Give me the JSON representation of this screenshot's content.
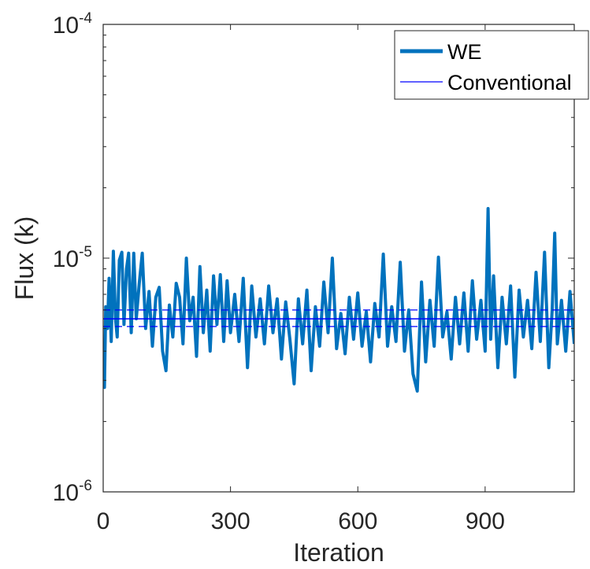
{
  "chart_data": {
    "type": "line",
    "title": "",
    "xlabel": "Iteration",
    "ylabel": "Flux (k)",
    "xlim": [
      0,
      1110
    ],
    "ylim": [
      1e-06,
      0.0001
    ],
    "yscale": "log",
    "xticks": [
      0,
      300,
      600,
      900
    ],
    "xtick_labels": [
      "0",
      "300",
      "600",
      "900"
    ],
    "yticks": [
      1e-06,
      1e-05,
      0.0001
    ],
    "ytick_labels": [
      {
        "base": "10",
        "exp": "-6"
      },
      {
        "base": "10",
        "exp": "-5"
      },
      {
        "base": "10",
        "exp": "-4"
      }
    ],
    "grid": false,
    "legend_position": "top-right",
    "series": [
      {
        "name": "WE",
        "color": "#0072BD",
        "style": "thick-solid",
        "x": [
          0,
          3,
          6,
          10,
          14,
          19,
          24,
          29,
          33,
          38,
          44,
          49,
          55,
          60,
          66,
          72,
          78,
          85,
          92,
          100,
          108,
          116,
          124,
          132,
          140,
          148,
          156,
          164,
          172,
          180,
          188,
          196,
          204,
          212,
          220,
          228,
          236,
          244,
          252,
          260,
          268,
          276,
          284,
          292,
          300,
          310,
          320,
          330,
          340,
          350,
          360,
          370,
          380,
          390,
          400,
          410,
          420,
          430,
          440,
          450,
          460,
          470,
          480,
          490,
          500,
          510,
          520,
          530,
          540,
          550,
          560,
          570,
          580,
          590,
          600,
          610,
          620,
          630,
          640,
          650,
          660,
          670,
          680,
          690,
          700,
          710,
          720,
          730,
          740,
          750,
          760,
          770,
          780,
          790,
          800,
          810,
          820,
          830,
          840,
          850,
          860,
          870,
          880,
          890,
          900,
          907,
          913,
          920,
          930,
          940,
          950,
          960,
          970,
          980,
          990,
          1000,
          1010,
          1020,
          1030,
          1040,
          1050,
          1058,
          1064,
          1070,
          1080,
          1090,
          1100,
          1110
        ],
        "values": [
          4.2e-06,
          2.8e-06,
          6.2e-06,
          5e-06,
          8.2e-06,
          4.4e-06,
          1.07e-05,
          5.5e-06,
          4.6e-06,
          9.8e-06,
          1.06e-05,
          5.2e-06,
          9e-06,
          1.05e-05,
          4.8e-06,
          1.05e-05,
          5.5e-06,
          7.8e-06,
          1.05e-05,
          5e-06,
          7.2e-06,
          4.2e-06,
          6.8e-06,
          7.5e-06,
          4e-06,
          3.3e-06,
          6.3e-06,
          4.6e-06,
          7.8e-06,
          6.8e-06,
          4.3e-06,
          1e-05,
          5.4e-06,
          6.8e-06,
          3.8e-06,
          9.2e-06,
          4.8e-06,
          7.3e-06,
          4e-06,
          8.4e-06,
          5.2e-06,
          8.5e-06,
          4.4e-06,
          8e-06,
          4.8e-06,
          7e-06,
          4.4e-06,
          8.2e-06,
          3.4e-06,
          7.6e-06,
          4.6e-06,
          6.7e-06,
          4.3e-06,
          7.6e-06,
          4.8e-06,
          6.7e-06,
          3.7e-06,
          6.5e-06,
          4.5e-06,
          2.9e-06,
          6.7e-06,
          4.3e-06,
          7.3e-06,
          3.3e-06,
          6.2e-06,
          4.2e-06,
          7.9e-06,
          4.8e-06,
          1e-05,
          4.1e-06,
          5.8e-06,
          3.9e-06,
          6.8e-06,
          4.5e-06,
          7.1e-06,
          4.2e-06,
          5.9e-06,
          3.6e-06,
          6.4e-06,
          4.6e-06,
          1.04e-05,
          4.2e-06,
          6.2e-06,
          4.4e-06,
          9.6e-06,
          4e-06,
          6e-06,
          3.2e-06,
          2.7e-06,
          7.9e-06,
          3.6e-06,
          6.6e-06,
          4.2e-06,
          1.01e-05,
          4.6e-06,
          5.9e-06,
          3.7e-06,
          6.8e-06,
          4.3e-06,
          7.1e-06,
          4e-06,
          8e-06,
          4.5e-06,
          6.6e-06,
          4e-06,
          1.63e-05,
          4.5e-06,
          8.4e-06,
          3.4e-06,
          6.8e-06,
          4.3e-06,
          7.6e-06,
          3.1e-06,
          7.3e-06,
          4.6e-06,
          6.6e-06,
          4.1e-06,
          8.7e-06,
          4.4e-06,
          1.06e-05,
          3.4e-06,
          6e-06,
          1.28e-05,
          4.3e-06,
          6.6e-06,
          4e-06,
          7.2e-06,
          4.3e-06
        ]
      },
      {
        "name": "Conventional",
        "color": "#0000FF",
        "style": "thin-solid",
        "x": [
          0,
          1110
        ],
        "values": [
          5.5e-06,
          5.5e-06
        ],
        "band_low": 5.1e-06,
        "band_high": 6e-06
      }
    ]
  }
}
